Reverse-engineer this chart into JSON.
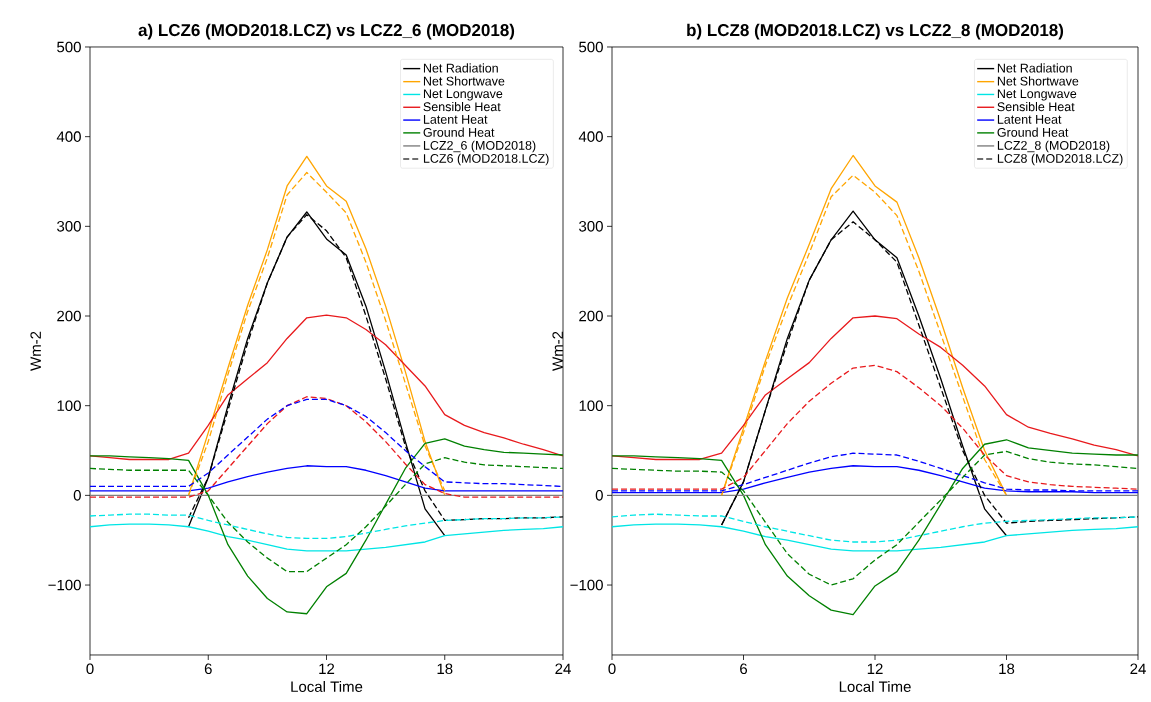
{
  "chart_data": [
    {
      "type": "line",
      "title": "a) LCZ6 (MOD2018.LCZ) vs LCZ2_6 (MOD2018)",
      "xlabel": "Local Time",
      "ylabel": "Wm-2",
      "x": [
        0,
        1,
        2,
        3,
        4,
        5,
        6,
        7,
        8,
        9,
        10,
        11,
        12,
        13,
        14,
        15,
        16,
        17,
        18,
        19,
        20,
        21,
        22,
        23,
        24
      ],
      "xlim": [
        0,
        24
      ],
      "xticks": [
        0,
        6,
        12,
        18,
        24
      ],
      "ylim": [
        -178,
        500
      ],
      "yticks": [
        {
          "value": -100,
          "label": "−100"
        },
        0,
        100,
        200,
        300,
        400,
        500
      ],
      "legend": "top right",
      "series": [
        {
          "name": "Net Radiation",
          "color": "#000000",
          "line_style": "solid",
          "x": [
            5,
            6,
            7,
            8,
            9,
            10,
            11,
            12,
            13,
            14,
            15,
            16,
            17,
            18
          ],
          "values": [
            -35,
            20,
            100,
            175,
            237,
            288,
            316,
            286,
            268,
            211,
            138,
            60,
            -15,
            -45
          ]
        },
        {
          "name": "Net Shortwave",
          "color": "#ffa500",
          "line_style": "solid",
          "x": [
            5,
            6,
            7,
            8,
            9,
            10,
            11,
            12,
            13,
            14,
            15,
            16,
            17,
            18
          ],
          "values": [
            0,
            70,
            142,
            212,
            274,
            345,
            378,
            345,
            328,
            275,
            211,
            138,
            60,
            0
          ]
        },
        {
          "name": "Net Longwave",
          "color": "#00e5e5",
          "line_style": "solid",
          "values": [
            -35,
            -33,
            -32,
            -32,
            -33,
            -35,
            -40,
            -46,
            -50,
            -55,
            -60,
            -62,
            -62,
            -62,
            -60,
            -58,
            -55,
            -52,
            -45,
            -43,
            -41,
            -39,
            -38,
            -37,
            -35
          ]
        },
        {
          "name": "Sensible Heat",
          "color": "#e8191c",
          "line_style": "solid",
          "values": [
            44,
            42,
            40,
            40,
            40,
            47,
            78,
            112,
            130,
            148,
            175,
            198,
            201,
            198,
            185,
            168,
            145,
            122,
            90,
            78,
            70,
            64,
            57,
            51,
            44
          ]
        },
        {
          "name": "Latent Heat",
          "color": "#0000ff",
          "line_style": "solid",
          "values": [
            5,
            5,
            5,
            5,
            5,
            5,
            8,
            15,
            21,
            26,
            30,
            33,
            32,
            32,
            28,
            22,
            15,
            8,
            5,
            5,
            5,
            5,
            5,
            5,
            5
          ]
        },
        {
          "name": "Ground Heat",
          "color": "#008000",
          "line_style": "solid",
          "values": [
            44,
            44,
            43,
            42,
            41,
            39,
            0,
            -55,
            -90,
            -115,
            -130,
            -132,
            -102,
            -87,
            -50,
            -10,
            30,
            58,
            63,
            55,
            51,
            48,
            47,
            46,
            45
          ]
        },
        {
          "name": "LCZ2_6 (MOD2018)",
          "color": "#808080",
          "line_style": "solid",
          "values": [
            0,
            0,
            0,
            0,
            0,
            0,
            0,
            0,
            0,
            0,
            0,
            0,
            0,
            0,
            0,
            0,
            0,
            0,
            0,
            0,
            0,
            0,
            0,
            0,
            0
          ]
        },
        {
          "name": "LCZ6 (MOD2018.LCZ)",
          "color": "#404040",
          "line_style": "dashed",
          "values": [
            null,
            null,
            null,
            null,
            null,
            null,
            null,
            null,
            null,
            null,
            null,
            null,
            null,
            null,
            null,
            null,
            null,
            null,
            null,
            null,
            null,
            null,
            null,
            null,
            null
          ]
        },
        {
          "color": "#000000",
          "line_style": "dashed",
          "x": [
            5,
            6,
            7,
            8,
            9,
            10,
            11,
            12,
            13,
            14,
            15,
            16,
            17,
            18,
            19,
            20,
            21,
            22,
            23,
            24
          ],
          "values": [
            -25,
            20,
            95,
            170,
            237,
            288,
            313,
            295,
            265,
            200,
            130,
            55,
            5,
            -28,
            -27,
            -26,
            -26,
            -25,
            -25,
            -24
          ]
        },
        {
          "color": "#ffa500",
          "line_style": "dashed",
          "x": [
            5,
            6,
            7,
            8,
            9,
            10,
            11,
            12,
            13,
            14,
            15,
            16,
            17,
            18
          ],
          "values": [
            0,
            60,
            135,
            205,
            265,
            335,
            360,
            338,
            315,
            260,
            195,
            125,
            55,
            5
          ]
        },
        {
          "color": "#00e5e5",
          "line_style": "dashed",
          "values": [
            -23,
            -22,
            -21,
            -21,
            -22,
            -22,
            -28,
            -33,
            -38,
            -43,
            -47,
            -48,
            -48,
            -46,
            -42,
            -38,
            -34,
            -31,
            -28,
            -27,
            -26,
            -26,
            -25,
            -25,
            -24
          ]
        },
        {
          "color": "#e8191c",
          "line_style": "dashed",
          "values": [
            -2,
            -2,
            -2,
            -2,
            -2,
            -2,
            5,
            30,
            55,
            80,
            100,
            110,
            108,
            100,
            82,
            60,
            35,
            12,
            2,
            -2,
            -2,
            -2,
            -2,
            -2,
            -2
          ]
        },
        {
          "color": "#0000ff",
          "line_style": "dashed",
          "values": [
            10,
            10,
            10,
            10,
            10,
            10,
            25,
            45,
            65,
            85,
            100,
            107,
            107,
            100,
            88,
            70,
            50,
            32,
            15,
            14,
            13,
            13,
            12,
            11,
            10
          ]
        },
        {
          "color": "#008000",
          "line_style": "dashed",
          "values": [
            30,
            29,
            28,
            28,
            28,
            28,
            0,
            -30,
            -52,
            -70,
            -85,
            -85,
            -70,
            -55,
            -35,
            -12,
            12,
            35,
            42,
            37,
            34,
            33,
            32,
            31,
            30
          ]
        }
      ]
    },
    {
      "type": "line",
      "title": "b) LCZ8 (MOD2018.LCZ) vs LCZ2_8 (MOD2018)",
      "xlabel": "Local Time",
      "ylabel": "Wm-2",
      "x": [
        0,
        1,
        2,
        3,
        4,
        5,
        6,
        7,
        8,
        9,
        10,
        11,
        12,
        13,
        14,
        15,
        16,
        17,
        18,
        19,
        20,
        21,
        22,
        23,
        24
      ],
      "xlim": [
        0,
        24
      ],
      "xticks": [
        0,
        6,
        12,
        18,
        24
      ],
      "ylim": [
        -178,
        500
      ],
      "yticks": [
        {
          "value": -100,
          "label": "−100"
        },
        0,
        100,
        200,
        300,
        400,
        500
      ],
      "legend": "top right",
      "series": [
        {
          "name": "Net Radiation",
          "color": "#000000",
          "line_style": "solid",
          "x": [
            5,
            6,
            7,
            8,
            9,
            10,
            11,
            12,
            13,
            14,
            15,
            16,
            17,
            18
          ],
          "values": [
            -33,
            15,
            95,
            175,
            240,
            285,
            317,
            285,
            265,
            200,
            130,
            55,
            -15,
            -45
          ]
        },
        {
          "name": "Net Shortwave",
          "color": "#ffa500",
          "line_style": "solid",
          "x": [
            5,
            6,
            7,
            8,
            9,
            10,
            11,
            12,
            13,
            14,
            15,
            16,
            17,
            18
          ],
          "values": [
            0,
            75,
            150,
            220,
            280,
            342,
            379,
            345,
            327,
            265,
            195,
            120,
            50,
            0
          ]
        },
        {
          "name": "Net Longwave",
          "color": "#00e5e5",
          "line_style": "solid",
          "values": [
            -35,
            -33,
            -32,
            -32,
            -33,
            -35,
            -40,
            -46,
            -50,
            -55,
            -60,
            -62,
            -62,
            -62,
            -60,
            -58,
            -55,
            -52,
            -45,
            -43,
            -41,
            -39,
            -38,
            -37,
            -35
          ]
        },
        {
          "name": "Sensible Heat",
          "color": "#e8191c",
          "line_style": "solid",
          "values": [
            44,
            42,
            40,
            40,
            40,
            47,
            78,
            112,
            130,
            148,
            175,
            198,
            200,
            197,
            180,
            165,
            145,
            122,
            90,
            76,
            69,
            63,
            56,
            51,
            44
          ]
        },
        {
          "name": "Latent Heat",
          "color": "#0000ff",
          "line_style": "solid",
          "values": [
            3,
            3,
            3,
            3,
            3,
            3,
            7,
            14,
            20,
            26,
            30,
            33,
            32,
            32,
            28,
            22,
            15,
            8,
            5,
            4,
            4,
            4,
            3,
            3,
            3
          ]
        },
        {
          "name": "Ground Heat",
          "color": "#008000",
          "line_style": "solid",
          "values": [
            44,
            44,
            43,
            42,
            41,
            39,
            0,
            -55,
            -90,
            -112,
            -128,
            -133,
            -101,
            -85,
            -50,
            -10,
            30,
            57,
            62,
            53,
            50,
            47,
            46,
            45,
            45
          ]
        },
        {
          "name": "LCZ2_8 (MOD2018)",
          "color": "#808080",
          "line_style": "solid",
          "values": [
            0,
            0,
            0,
            0,
            0,
            0,
            0,
            0,
            0,
            0,
            0,
            0,
            0,
            0,
            0,
            0,
            0,
            0,
            0,
            0,
            0,
            0,
            0,
            0,
            0
          ]
        },
        {
          "name": "LCZ8 (MOD2018.LCZ)",
          "color": "#404040",
          "line_style": "dashed",
          "values": [
            null,
            null,
            null,
            null,
            null,
            null,
            null,
            null,
            null,
            null,
            null,
            null,
            null,
            null,
            null,
            null,
            null,
            null,
            null,
            null,
            null,
            null,
            null,
            null,
            null
          ]
        },
        {
          "color": "#000000",
          "line_style": "dashed",
          "x": [
            5,
            6,
            7,
            8,
            9,
            10,
            11,
            12,
            13,
            14,
            15,
            16,
            17,
            18,
            19,
            20,
            21,
            22,
            23,
            24
          ],
          "values": [
            -33,
            15,
            95,
            170,
            240,
            285,
            305,
            285,
            260,
            190,
            120,
            50,
            0,
            -31,
            -29,
            -28,
            -27,
            -26,
            -25,
            -24
          ]
        },
        {
          "color": "#ffa500",
          "line_style": "dashed",
          "x": [
            5,
            6,
            7,
            8,
            9,
            10,
            11,
            12,
            13,
            14,
            15,
            16,
            17,
            18
          ],
          "values": [
            0,
            70,
            145,
            210,
            270,
            333,
            357,
            338,
            312,
            250,
            180,
            110,
            40,
            0
          ]
        },
        {
          "color": "#00e5e5",
          "line_style": "dashed",
          "values": [
            -24,
            -22,
            -21,
            -22,
            -23,
            -23,
            -29,
            -35,
            -40,
            -45,
            -50,
            -52,
            -52,
            -50,
            -45,
            -40,
            -35,
            -31,
            -29,
            -28,
            -27,
            -26,
            -25,
            -25,
            -24
          ]
        },
        {
          "color": "#e8191c",
          "line_style": "dashed",
          "values": [
            7,
            7,
            7,
            7,
            7,
            7,
            20,
            50,
            80,
            105,
            125,
            142,
            145,
            138,
            120,
            100,
            75,
            45,
            22,
            15,
            12,
            10,
            9,
            8,
            7
          ]
        },
        {
          "color": "#0000ff",
          "line_style": "dashed",
          "values": [
            5,
            5,
            5,
            5,
            5,
            5,
            12,
            20,
            28,
            36,
            43,
            47,
            46,
            45,
            38,
            30,
            22,
            14,
            7,
            6,
            6,
            5,
            5,
            5,
            5
          ]
        },
        {
          "color": "#008000",
          "line_style": "dashed",
          "values": [
            30,
            29,
            28,
            27,
            27,
            26,
            5,
            -30,
            -65,
            -88,
            -100,
            -93,
            -72,
            -55,
            -30,
            -5,
            20,
            45,
            49,
            41,
            37,
            35,
            34,
            32,
            30
          ]
        }
      ]
    }
  ]
}
